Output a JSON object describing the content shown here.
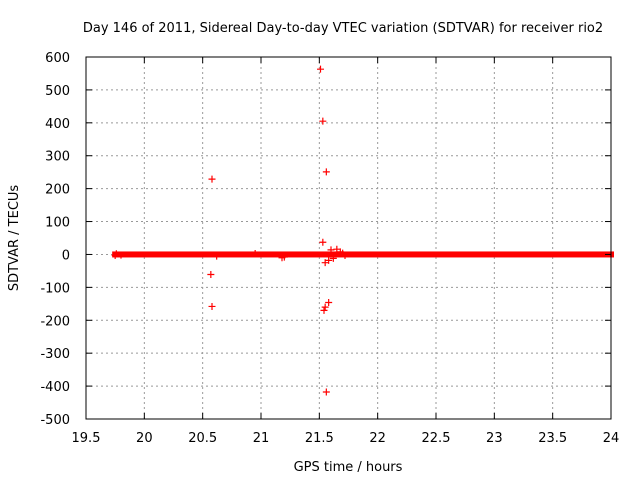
{
  "chart_data": {
    "type": "scatter",
    "title": "Day 146 of 2011, Sidereal Day-to-day VTEC variation (SDTVAR) for receiver rio2",
    "xlabel": "GPS time / hours",
    "ylabel": "SDTVAR / TECUs",
    "xlim": [
      19.5,
      24
    ],
    "ylim": [
      -500,
      600
    ],
    "x_ticks": [
      19.5,
      20,
      20.5,
      21,
      21.5,
      22,
      22.5,
      23,
      23.5,
      24
    ],
    "x_tick_labels": [
      "19.5",
      "20",
      "20.5",
      "21",
      "21.5",
      "22",
      "22.5",
      "23",
      "23.5",
      "24"
    ],
    "y_ticks": [
      -500,
      -400,
      -300,
      -200,
      -100,
      0,
      100,
      200,
      300,
      400,
      500,
      600
    ],
    "y_tick_labels": [
      "-500",
      "-400",
      "-300",
      "-200",
      "-100",
      "0",
      "100",
      "200",
      "300",
      "400",
      "500",
      "600"
    ],
    "grid": true,
    "marker": "+",
    "color": "#ff0000",
    "baseline": {
      "x_start": 19.75,
      "x_end": 24.0,
      "y": 0
    },
    "series": [
      {
        "points": [
          [
            19.75,
            -3
          ],
          [
            19.76,
            2
          ],
          [
            19.8,
            -2
          ],
          [
            20.58,
            229
          ],
          [
            20.57,
            -61
          ],
          [
            20.58,
            -158
          ],
          [
            20.62,
            -5
          ],
          [
            20.95,
            3
          ],
          [
            21.18,
            -10
          ],
          [
            21.2,
            -8
          ],
          [
            21.51,
            563
          ],
          [
            21.53,
            405
          ],
          [
            21.56,
            251
          ],
          [
            21.53,
            37
          ],
          [
            21.6,
            14
          ],
          [
            21.55,
            -25
          ],
          [
            21.58,
            -18
          ],
          [
            21.62,
            -12
          ],
          [
            21.65,
            16
          ],
          [
            21.68,
            8
          ],
          [
            21.7,
            4
          ],
          [
            21.72,
            -3
          ],
          [
            21.58,
            -146
          ],
          [
            21.55,
            -160
          ],
          [
            21.54,
            -170
          ],
          [
            21.56,
            -418
          ]
        ]
      }
    ]
  }
}
